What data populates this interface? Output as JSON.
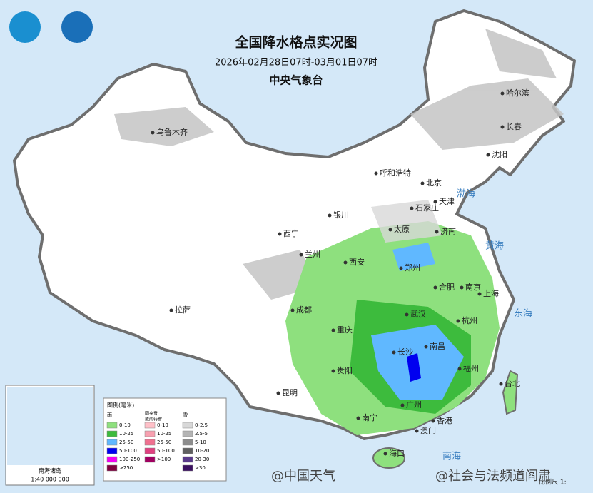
{
  "header": {
    "title": "全国降水格点实况图",
    "subtitle": "2026年02月28日07时-03月01日07时",
    "agency": "中央气象台"
  },
  "cities": [
    "哈尔滨",
    "长春",
    "沈阳",
    "乌鲁木齐",
    "呼和浩特",
    "北京",
    "天津",
    "石家庄",
    "银川",
    "太原",
    "济南",
    "西宁",
    "兰州",
    "西安",
    "郑州",
    "合肥",
    "南京",
    "上海",
    "拉萨",
    "成都",
    "武汉",
    "杭州",
    "重庆",
    "长沙",
    "南昌",
    "福州",
    "台北",
    "贵阳",
    "昆明",
    "南宁",
    "广州",
    "香港",
    "澳门",
    "海口"
  ],
  "seas": [
    "渤海",
    "黄海",
    "东海",
    "南海"
  ],
  "legend": {
    "title": "图例(毫米)",
    "rain": {
      "name": "雨",
      "items": [
        {
          "label": "0-10",
          "color": "#8ee07e"
        },
        {
          "label": "10-25",
          "color": "#3dbb3d"
        },
        {
          "label": "25-50",
          "color": "#60b8ff"
        },
        {
          "label": "50-100",
          "color": "#0000f0"
        },
        {
          "label": "100-250",
          "color": "#f000f0"
        },
        {
          "label": ">250",
          "color": "#800040"
        }
      ]
    },
    "mixed": {
      "name": [
        "雨夹雪",
        "或雨转雪"
      ],
      "items": [
        {
          "label": "0-10",
          "color": "#ffc0c8"
        },
        {
          "label": "10-25",
          "color": "#f8a0b0"
        },
        {
          "label": "25-50",
          "color": "#f07090"
        },
        {
          "label": "50-100",
          "color": "#e04080"
        },
        {
          "label": ">100",
          "color": "#a00060"
        }
      ]
    },
    "snow": {
      "name": "雪",
      "items": [
        {
          "label": "0-2.5",
          "color": "#d8d8d8"
        },
        {
          "label": "2.5-5",
          "color": "#b4b4b4"
        },
        {
          "label": "5-10",
          "color": "#8c8c8c"
        },
        {
          "label": "10-20",
          "color": "#606060"
        },
        {
          "label": "20-30",
          "color": "#5a3a8a"
        },
        {
          "label": ">30",
          "color": "#3a1060"
        }
      ]
    }
  },
  "inset": {
    "title": "南海诸岛",
    "scale": "1:40 000 000"
  },
  "scale_label": "比例尺 1:",
  "watermarks": [
    "@中国天气",
    "@社会与法频道阎肃"
  ]
}
